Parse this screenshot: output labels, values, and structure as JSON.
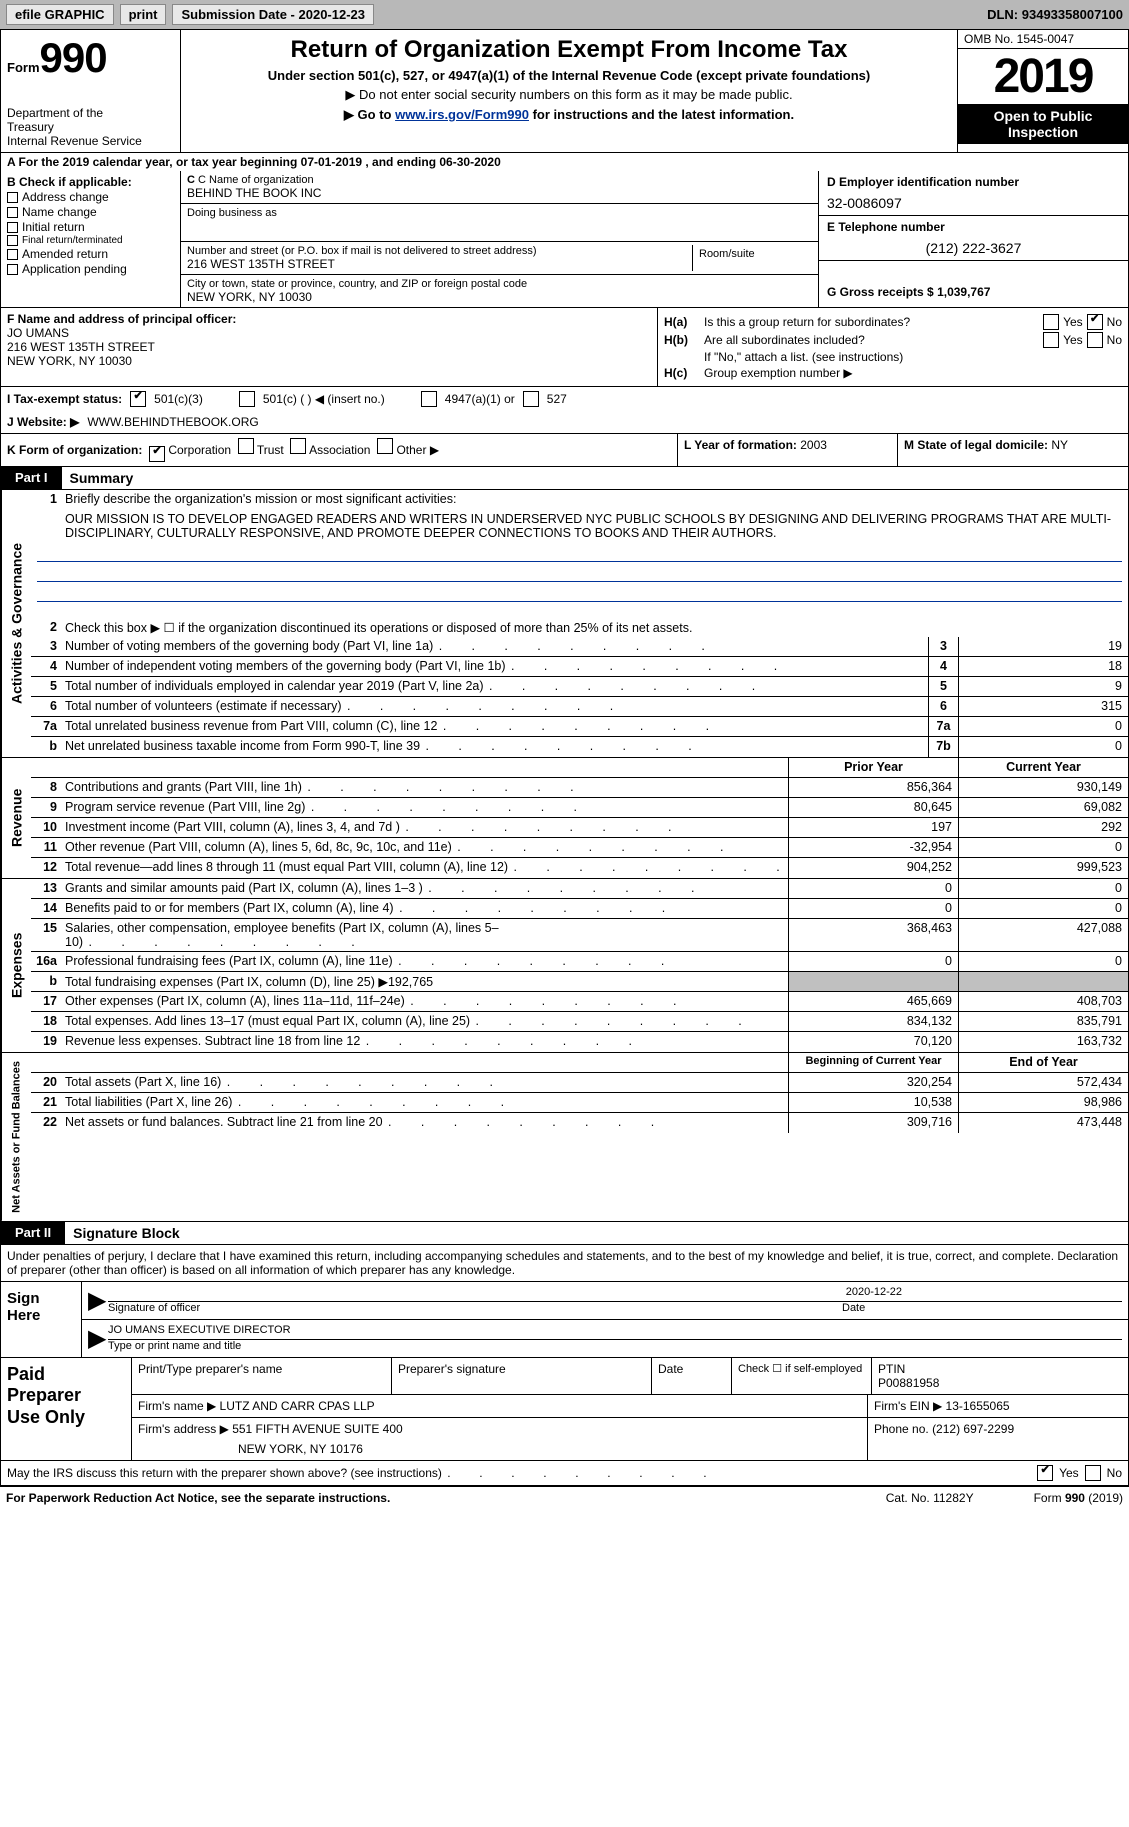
{
  "topbar": {
    "efile": "efile GRAPHIC",
    "print": "print",
    "submission_label": "Submission Date - ",
    "submission_date": "2020-12-23",
    "dln_label": "DLN: ",
    "dln": "93493358007100"
  },
  "header": {
    "form_word": "Form",
    "form_num": "990",
    "dept": "Department of the Treasury\nInternal Revenue Service",
    "title": "Return of Organization Exempt From Income Tax",
    "subtitle": "Under section 501(c), 527, or 4947(a)(1) of the Internal Revenue Code (except private foundations)",
    "note1": "▶ Do not enter social security numbers on this form as it may be made public.",
    "note2_pre": "▶ Go to ",
    "note2_link": "www.irs.gov/Form990",
    "note2_post": " for instructions and the latest information.",
    "omb": "OMB No. 1545-0047",
    "year": "2019",
    "open": "Open to Public Inspection"
  },
  "row_a": "A For the 2019 calendar year, or tax year beginning 07-01-2019    , and ending 06-30-2020",
  "col_b": {
    "title": "B Check if applicable:",
    "items": [
      "Address change",
      "Name change",
      "Initial return",
      "Final return/terminated",
      "Amended return",
      "Application pending"
    ]
  },
  "col_c": {
    "name_label": "C Name of organization",
    "name": "BEHIND THE BOOK INC",
    "dba_label": "Doing business as",
    "dba": "",
    "addr_label": "Number and street (or P.O. box if mail is not delivered to street address)",
    "room_label": "Room/suite",
    "addr": "216 WEST 135TH STREET",
    "city_label": "City or town, state or province, country, and ZIP or foreign postal code",
    "city": "NEW YORK, NY  10030"
  },
  "col_d": {
    "ein_label": "D Employer identification number",
    "ein": "32-0086097",
    "phone_label": "E Telephone number",
    "phone": "(212) 222-3627",
    "receipts_label": "G Gross receipts $ ",
    "receipts": "1,039,767"
  },
  "col_f": {
    "label": "F  Name and address of principal officer:",
    "name": "JO UMANS",
    "addr1": "216 WEST 135TH STREET",
    "addr2": "NEW YORK, NY  10030"
  },
  "col_h": {
    "ha_label": "H(a)",
    "ha_q": "Is this a group return for subordinates?",
    "hb_label": "H(b)",
    "hb_q": "Are all subordinates included?",
    "hb_note": "If \"No,\" attach a list. (see instructions)",
    "hc_label": "H(c)",
    "hc_q": "Group exemption number ▶",
    "yes": "Yes",
    "no": "No"
  },
  "row_i": {
    "label": "I    Tax-exempt status:",
    "opts": [
      "501(c)(3)",
      "501(c) (  ) ◀ (insert no.)",
      "4947(a)(1) or",
      "527"
    ]
  },
  "row_j": {
    "label": "J    Website: ▶ ",
    "val": "WWW.BEHINDTHEBOOK.ORG"
  },
  "row_k": {
    "label": "K Form of organization:",
    "opts": [
      "Corporation",
      "Trust",
      "Association",
      "Other ▶"
    ]
  },
  "row_lm": {
    "l_label": "L Year of formation: ",
    "l_val": "2003",
    "m_label": "M State of legal domicile: ",
    "m_val": "NY"
  },
  "parts": {
    "p1_tag": "Part I",
    "p1_title": "Summary",
    "p2_tag": "Part II",
    "p2_title": "Signature Block"
  },
  "summary": {
    "mission_label": "Briefly describe the organization's mission or most significant activities:",
    "mission": "OUR MISSION IS TO DEVELOP ENGAGED READERS AND WRITERS IN UNDERSERVED NYC PUBLIC SCHOOLS BY DESIGNING AND DELIVERING PROGRAMS THAT ARE MULTI-DISCIPLINARY, CULTURALLY RESPONSIVE, AND PROMOTE DEEPER CONNECTIONS TO BOOKS AND THEIR AUTHORS.",
    "line2": "Check this box ▶ ☐  if the organization discontinued its operations or disposed of more than 25% of its net assets.",
    "rows_gov": [
      {
        "n": "3",
        "t": "Number of voting members of the governing body (Part VI, line 1a)",
        "c": "3",
        "v": "19"
      },
      {
        "n": "4",
        "t": "Number of independent voting members of the governing body (Part VI, line 1b)",
        "c": "4",
        "v": "18"
      },
      {
        "n": "5",
        "t": "Total number of individuals employed in calendar year 2019 (Part V, line 2a)",
        "c": "5",
        "v": "9"
      },
      {
        "n": "6",
        "t": "Total number of volunteers (estimate if necessary)",
        "c": "6",
        "v": "315"
      },
      {
        "n": "7a",
        "t": "Total unrelated business revenue from Part VIII, column (C), line 12",
        "c": "7a",
        "v": "0"
      },
      {
        "n": "b",
        "t": "Net unrelated business taxable income from Form 990-T, line 39",
        "c": "7b",
        "v": "0"
      }
    ],
    "hdr_prior": "Prior Year",
    "hdr_current": "Current Year",
    "rows_rev": [
      {
        "n": "8",
        "t": "Contributions and grants (Part VIII, line 1h)",
        "p": "856,364",
        "c": "930,149"
      },
      {
        "n": "9",
        "t": "Program service revenue (Part VIII, line 2g)",
        "p": "80,645",
        "c": "69,082"
      },
      {
        "n": "10",
        "t": "Investment income (Part VIII, column (A), lines 3, 4, and 7d )",
        "p": "197",
        "c": "292"
      },
      {
        "n": "11",
        "t": "Other revenue (Part VIII, column (A), lines 5, 6d, 8c, 9c, 10c, and 11e)",
        "p": "-32,954",
        "c": "0"
      },
      {
        "n": "12",
        "t": "Total revenue—add lines 8 through 11 (must equal Part VIII, column (A), line 12)",
        "p": "904,252",
        "c": "999,523"
      }
    ],
    "rows_exp": [
      {
        "n": "13",
        "t": "Grants and similar amounts paid (Part IX, column (A), lines 1–3 )",
        "p": "0",
        "c": "0"
      },
      {
        "n": "14",
        "t": "Benefits paid to or for members (Part IX, column (A), line 4)",
        "p": "0",
        "c": "0"
      },
      {
        "n": "15",
        "t": "Salaries, other compensation, employee benefits (Part IX, column (A), lines 5–10)",
        "p": "368,463",
        "c": "427,088"
      },
      {
        "n": "16a",
        "t": "Professional fundraising fees (Part IX, column (A), line 11e)",
        "p": "0",
        "c": "0"
      },
      {
        "n": "b",
        "t": "Total fundraising expenses (Part IX, column (D), line 25) ▶192,765",
        "p": "",
        "c": "",
        "gray": true
      },
      {
        "n": "17",
        "t": "Other expenses (Part IX, column (A), lines 11a–11d, 11f–24e)",
        "p": "465,669",
        "c": "408,703"
      },
      {
        "n": "18",
        "t": "Total expenses. Add lines 13–17 (must equal Part IX, column (A), line 25)",
        "p": "834,132",
        "c": "835,791"
      },
      {
        "n": "19",
        "t": "Revenue less expenses. Subtract line 18 from line 12",
        "p": "70,120",
        "c": "163,732"
      }
    ],
    "hdr_begin": "Beginning of Current Year",
    "hdr_end": "End of Year",
    "rows_net": [
      {
        "n": "20",
        "t": "Total assets (Part X, line 16)",
        "p": "320,254",
        "c": "572,434"
      },
      {
        "n": "21",
        "t": "Total liabilities (Part X, line 26)",
        "p": "10,538",
        "c": "98,986"
      },
      {
        "n": "22",
        "t": "Net assets or fund balances. Subtract line 21 from line 20",
        "p": "309,716",
        "c": "473,448"
      }
    ],
    "side_gov": "Activities & Governance",
    "side_rev": "Revenue",
    "side_exp": "Expenses",
    "side_net": "Net Assets or Fund Balances"
  },
  "sig": {
    "perjury": "Under penalties of perjury, I declare that I have examined this return, including accompanying schedules and statements, and to the best of my knowledge and belief, it is true, correct, and complete. Declaration of preparer (other than officer) is based on all information of which preparer has any knowledge.",
    "sign_here": "Sign Here",
    "sig_of_officer": "Signature of officer",
    "date_label": "Date",
    "sig_date": "2020-12-22",
    "name_title": "JO UMANS  EXECUTIVE DIRECTOR",
    "type_name": "Type or print name and title",
    "paid": "Paid Preparer Use Only",
    "prep_name_label": "Print/Type preparer's name",
    "prep_sig_label": "Preparer's signature",
    "check_self": "Check ☐ if self-employed",
    "ptin_label": "PTIN",
    "ptin": "P00881958",
    "firm_name_label": "Firm's name    ▶ ",
    "firm_name": "LUTZ AND CARR CPAS LLP",
    "firm_ein_label": "Firm's EIN ▶ ",
    "firm_ein": "13-1655065",
    "firm_addr_label": "Firm's address ▶ ",
    "firm_addr1": "551 FIFTH AVENUE SUITE 400",
    "firm_addr2": "NEW YORK, NY  10176",
    "firm_phone_label": "Phone no. ",
    "firm_phone": "(212) 697-2299",
    "discuss": "May the IRS discuss this return with the preparer shown above? (see instructions)"
  },
  "footer": {
    "paperwork": "For Paperwork Reduction Act Notice, see the separate instructions.",
    "cat": "Cat. No. 11282Y",
    "form": "Form 990 (2019)"
  }
}
